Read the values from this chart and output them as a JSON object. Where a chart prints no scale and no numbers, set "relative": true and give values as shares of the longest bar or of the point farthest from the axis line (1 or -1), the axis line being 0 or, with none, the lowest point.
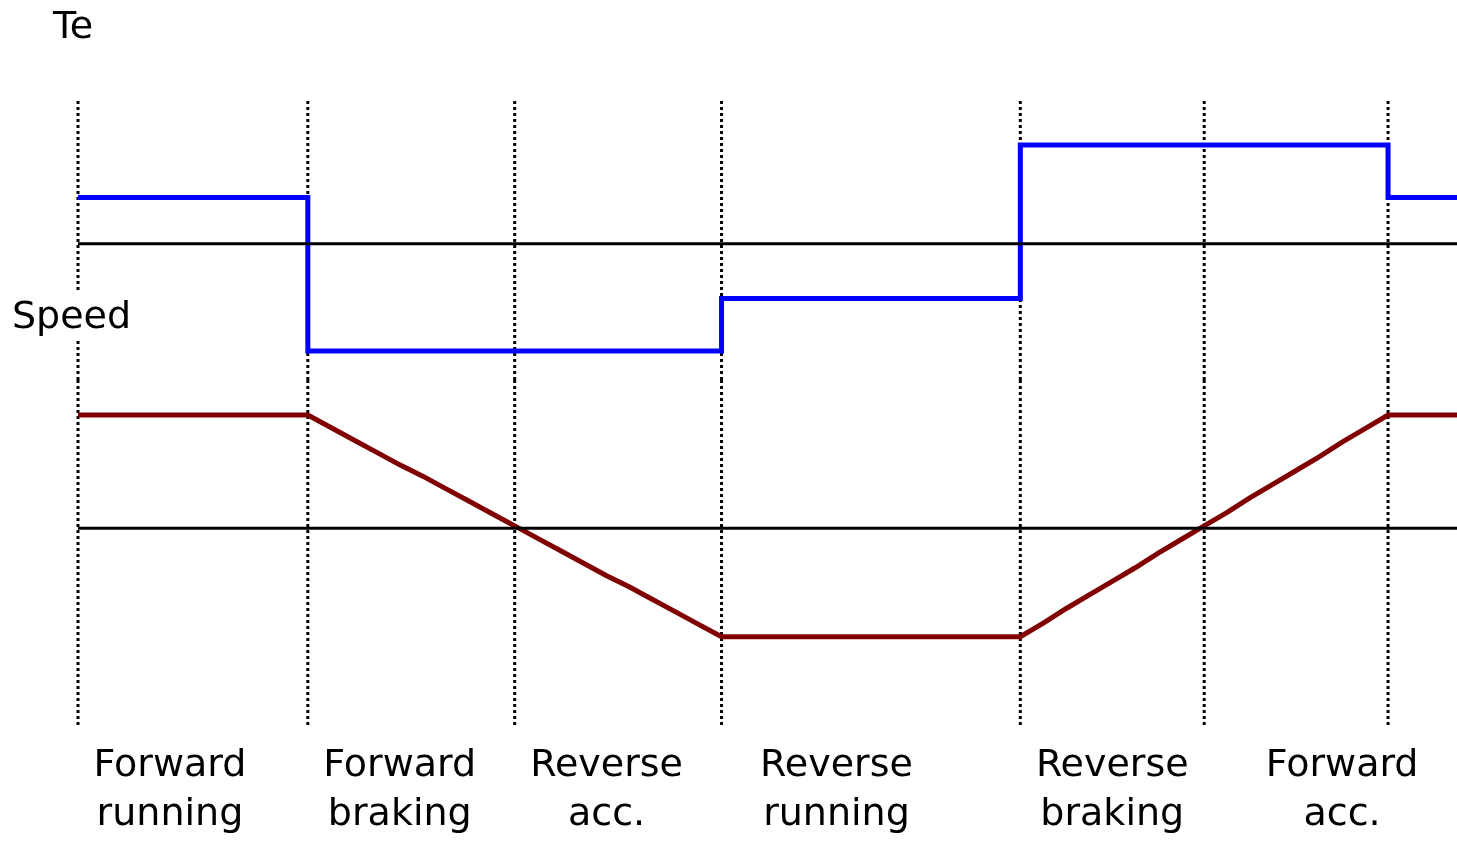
{
  "chart_data": [
    {
      "type": "step",
      "ylabel": "Te",
      "relative": true,
      "tick_labels": false,
      "grid": "x",
      "line_style": "solid",
      "marker": "none",
      "categories": [
        null,
        null,
        null,
        null,
        null,
        null,
        null,
        null,
        null,
        null,
        null,
        null,
        null,
        null,
        null,
        null,
        null,
        null,
        null,
        null,
        null,
        null,
        null,
        null,
        null,
        null,
        null,
        null,
        null,
        null,
        null,
        null,
        null,
        null,
        null,
        null,
        null,
        null,
        null,
        null,
        null,
        null,
        null,
        null,
        null,
        null,
        null,
        null,
        null,
        null,
        null,
        null,
        null,
        null,
        null,
        null,
        null,
        null,
        null,
        null,
        null
      ],
      "series": [
        {
          "color": "#0000ff",
          "values": [
            0.43,
            0.43,
            0.43,
            0.43,
            0.43,
            0.43,
            0.43,
            0.43,
            0.43,
            0.43,
            -1,
            -1,
            -1,
            -1,
            -1,
            -1,
            -1,
            -1,
            -1,
            -1,
            -1,
            -1,
            -1,
            -1,
            -1,
            -1,
            -1,
            -1,
            -0.51,
            -0.51,
            -0.51,
            -0.51,
            -0.51,
            -0.51,
            -0.51,
            -0.51,
            -0.51,
            -0.51,
            -0.51,
            -0.51,
            -0.51,
            0.92,
            0.92,
            0.92,
            0.92,
            0.92,
            0.92,
            0.92,
            0.92,
            0.92,
            0.92,
            0.92,
            0.92,
            0.92,
            0.92,
            0.92,
            0.92,
            0.43,
            0.43,
            0.43,
            0.43
          ]
        }
      ]
    },
    {
      "type": "line",
      "ylabel": "Speed",
      "relative": true,
      "tick_labels": "x",
      "grid": "x",
      "line_style": "solid",
      "marker": "none",
      "categories": [
        null,
        null,
        null,
        null,
        "Forward running",
        null,
        null,
        null,
        null,
        null,
        null,
        null,
        null,
        null,
        "Forward braking",
        null,
        null,
        null,
        null,
        null,
        null,
        null,
        null,
        "Reverse acc.",
        null,
        null,
        null,
        null,
        null,
        null,
        null,
        null,
        null,
        "Reverse running",
        null,
        null,
        null,
        null,
        null,
        null,
        null,
        null,
        null,
        null,
        null,
        "Reverse braking",
        null,
        null,
        null,
        null,
        null,
        null,
        null,
        null,
        null,
        "Forward acc.",
        null,
        null,
        null,
        null,
        null
      ],
      "series": [
        {
          "color": "#800000",
          "values": [
            1,
            1,
            1,
            1,
            1,
            1,
            1,
            1,
            1,
            1,
            1,
            0.89,
            0.78,
            0.67,
            0.56,
            0.46,
            0.35,
            0.24,
            0.13,
            0.02,
            -0.09,
            -0.2,
            -0.31,
            -0.42,
            -0.52,
            -0.63,
            -0.74,
            -0.85,
            -0.96,
            -0.96,
            -0.96,
            -0.96,
            -0.96,
            -0.96,
            -0.96,
            -0.96,
            -0.96,
            -0.96,
            -0.96,
            -0.96,
            -0.96,
            -0.96,
            -0.84,
            -0.71,
            -0.59,
            -0.47,
            -0.35,
            -0.22,
            -0.1,
            0.02,
            0.14,
            0.27,
            0.39,
            0.51,
            0.63,
            0.76,
            0.88,
            1,
            1,
            1,
            1
          ]
        }
      ]
    }
  ]
}
